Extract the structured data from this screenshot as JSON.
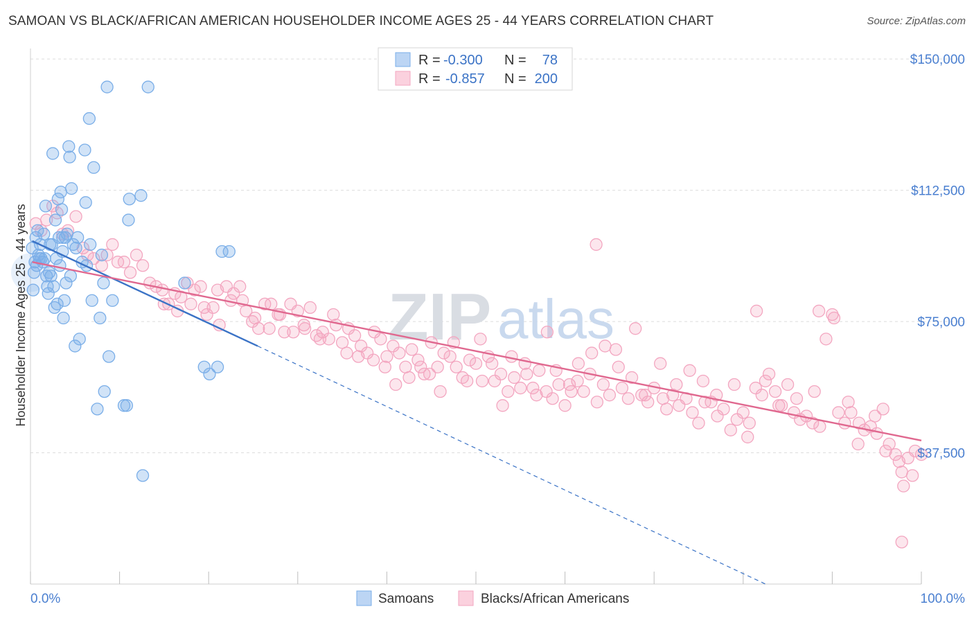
{
  "title": "SAMOAN VS BLACK/AFRICAN AMERICAN HOUSEHOLDER INCOME AGES 25 - 44 YEARS CORRELATION CHART",
  "source": "Source: ZipAtlas.com",
  "watermark": {
    "zip": "ZIP",
    "atlas": "atlas"
  },
  "colors": {
    "samoan": "#7aaee8",
    "samoan_line": "#3b73c6",
    "black": "#f3a6c0",
    "black_line": "#e0688f",
    "axis_text": "#4a7fd0",
    "grid": "#dcdcdc"
  },
  "legend": {
    "row1": {
      "r_label": "R =",
      "r_value": "-0.300",
      "n_label": "N =",
      "n_value": "78"
    },
    "row2": {
      "r_label": "R =",
      "r_value": "-0.857",
      "n_label": "N =",
      "n_value": "200"
    }
  },
  "bottom_legend": {
    "samoan": "Samoans",
    "black": "Blacks/African Americans"
  },
  "chart_data": {
    "type": "scatter",
    "title": "SAMOAN VS BLACK/AFRICAN AMERICAN HOUSEHOLDER INCOME AGES 25 - 44 YEARS CORRELATION CHART",
    "ylabel": "Householder Income Ages 25 - 44 years",
    "xlabel": "",
    "x_tick_labels": [
      "0.0%",
      "100.0%"
    ],
    "y_tick_labels": [
      "$37,500",
      "$75,000",
      "$112,500",
      "$150,000"
    ],
    "y_ticks": [
      37500,
      75000,
      112500,
      150000
    ],
    "xlim": [
      0,
      100
    ],
    "ylim": [
      0,
      153000
    ],
    "grid": true,
    "legend_position": "top-center",
    "series": [
      {
        "name": "Samoans",
        "r": -0.3,
        "n": 78,
        "trend": {
          "x0": 0.2,
          "y0": 98000,
          "x1": 25.5,
          "y1": 68000,
          "dash_x1": 82.5,
          "dash_y1": 0
        },
        "points": [
          [
            0.2,
            96
          ],
          [
            0.5,
            92
          ],
          [
            0.6,
            99
          ],
          [
            0.8,
            101
          ],
          [
            1.0,
            93
          ],
          [
            1.1,
            97
          ],
          [
            1.4,
            92
          ],
          [
            1.6,
            93
          ],
          [
            1.8,
            88
          ],
          [
            1.9,
            85
          ],
          [
            2.1,
            89
          ],
          [
            2.3,
            88
          ],
          [
            2.4,
            97
          ],
          [
            2.5,
            123
          ],
          [
            2.6,
            85
          ],
          [
            2.7,
            79
          ],
          [
            2.8,
            104
          ],
          [
            3.0,
            80
          ],
          [
            3.1,
            110
          ],
          [
            3.2,
            99
          ],
          [
            3.4,
            112
          ],
          [
            3.5,
            107
          ],
          [
            3.6,
            99
          ],
          [
            3.7,
            76
          ],
          [
            3.8,
            81
          ],
          [
            3.9,
            99
          ],
          [
            4.0,
            86
          ],
          [
            4.3,
            125
          ],
          [
            4.4,
            122
          ],
          [
            4.5,
            88
          ],
          [
            4.6,
            113
          ],
          [
            4.8,
            97
          ],
          [
            5.0,
            68
          ],
          [
            5.1,
            96
          ],
          [
            5.3,
            99
          ],
          [
            5.5,
            70
          ],
          [
            6.1,
            124
          ],
          [
            6.2,
            109
          ],
          [
            6.3,
            91
          ],
          [
            6.6,
            133
          ],
          [
            6.9,
            81
          ],
          [
            7.1,
            119
          ],
          [
            7.5,
            50
          ],
          [
            7.8,
            76
          ],
          [
            8.0,
            94
          ],
          [
            8.2,
            86
          ],
          [
            8.3,
            55
          ],
          [
            8.6,
            142
          ],
          [
            8.8,
            65
          ],
          [
            9.2,
            81
          ],
          [
            10.5,
            51
          ],
          [
            10.8,
            51
          ],
          [
            11.0,
            104
          ],
          [
            11.1,
            110
          ],
          [
            12.4,
            111
          ],
          [
            12.6,
            31
          ],
          [
            13.2,
            142
          ],
          [
            17.3,
            86
          ],
          [
            19.5,
            62
          ],
          [
            20.1,
            60
          ],
          [
            21.0,
            62
          ],
          [
            21.5,
            95
          ],
          [
            22.3,
            95
          ],
          [
            0.3,
            84
          ],
          [
            0.9,
            94
          ],
          [
            1.5,
            100
          ],
          [
            2.0,
            83
          ],
          [
            5.8,
            92
          ],
          [
            6.7,
            97
          ],
          [
            3.3,
            91
          ],
          [
            1.2,
            93
          ],
          [
            0.7,
            91
          ],
          [
            2.9,
            93
          ],
          [
            4.1,
            100
          ],
          [
            1.7,
            108
          ],
          [
            0.4,
            89
          ],
          [
            2.2,
            97
          ],
          [
            3.6,
            95
          ]
        ]
      },
      {
        "name": "Blacks/African Americans",
        "r": -0.857,
        "n": 200,
        "trend": {
          "x0": 0.2,
          "y0": 92000,
          "x1": 100,
          "y1": 41000
        },
        "points": [
          [
            0.6,
            103
          ],
          [
            1.2,
            101
          ],
          [
            1.8,
            104
          ],
          [
            2.5,
            108
          ],
          [
            3.0,
            106
          ],
          [
            3.6,
            100
          ],
          [
            4.2,
            101
          ],
          [
            5.1,
            105
          ],
          [
            5.9,
            96
          ],
          [
            6.4,
            94
          ],
          [
            7.1,
            93
          ],
          [
            8.0,
            91
          ],
          [
            8.6,
            94
          ],
          [
            9.2,
            97
          ],
          [
            9.8,
            92
          ],
          [
            10.5,
            92
          ],
          [
            11.2,
            89
          ],
          [
            11.9,
            94
          ],
          [
            12.6,
            91
          ],
          [
            13.4,
            86
          ],
          [
            14.1,
            85
          ],
          [
            14.8,
            84
          ],
          [
            15.5,
            80
          ],
          [
            16.2,
            83
          ],
          [
            16.9,
            82
          ],
          [
            17.6,
            86
          ],
          [
            18.4,
            84
          ],
          [
            19.1,
            85
          ],
          [
            19.8,
            77
          ],
          [
            20.5,
            79
          ],
          [
            21.2,
            74
          ],
          [
            22.0,
            85
          ],
          [
            22.8,
            83
          ],
          [
            23.5,
            85
          ],
          [
            24.2,
            78
          ],
          [
            24.9,
            75
          ],
          [
            25.6,
            73
          ],
          [
            26.3,
            80
          ],
          [
            27.0,
            80
          ],
          [
            27.8,
            77
          ],
          [
            28.5,
            72
          ],
          [
            29.2,
            80
          ],
          [
            30.0,
            78
          ],
          [
            30.7,
            74
          ],
          [
            31.4,
            79
          ],
          [
            32.1,
            71
          ],
          [
            32.8,
            72
          ],
          [
            33.5,
            70
          ],
          [
            34.3,
            74
          ],
          [
            35.0,
            69
          ],
          [
            35.7,
            73
          ],
          [
            36.4,
            71
          ],
          [
            37.1,
            68
          ],
          [
            37.8,
            66
          ],
          [
            38.6,
            72
          ],
          [
            39.3,
            70
          ],
          [
            40.0,
            65
          ],
          [
            40.7,
            68
          ],
          [
            41.4,
            66
          ],
          [
            42.1,
            62
          ],
          [
            42.8,
            67
          ],
          [
            43.5,
            64
          ],
          [
            44.2,
            60
          ],
          [
            45.0,
            69
          ],
          [
            45.7,
            62
          ],
          [
            46.4,
            66
          ],
          [
            47.1,
            65
          ],
          [
            47.8,
            62
          ],
          [
            48.5,
            59
          ],
          [
            49.3,
            64
          ],
          [
            50.0,
            63
          ],
          [
            50.7,
            58
          ],
          [
            51.4,
            65
          ],
          [
            52.1,
            58
          ],
          [
            52.8,
            60
          ],
          [
            53.6,
            55
          ],
          [
            54.3,
            59
          ],
          [
            55.0,
            56
          ],
          [
            55.7,
            60
          ],
          [
            56.4,
            56
          ],
          [
            57.1,
            61
          ],
          [
            57.9,
            55
          ],
          [
            58.6,
            53
          ],
          [
            59.3,
            57
          ],
          [
            60.0,
            51
          ],
          [
            60.7,
            55
          ],
          [
            61.4,
            58
          ],
          [
            62.1,
            55
          ],
          [
            62.8,
            60
          ],
          [
            63.6,
            52
          ],
          [
            64.3,
            57
          ],
          [
            65.0,
            54
          ],
          [
            65.7,
            67
          ],
          [
            66.4,
            56
          ],
          [
            67.1,
            53
          ],
          [
            67.9,
            73
          ],
          [
            68.6,
            54
          ],
          [
            69.3,
            52
          ],
          [
            70.0,
            56
          ],
          [
            70.7,
            63
          ],
          [
            71.4,
            50
          ],
          [
            72.1,
            54
          ],
          [
            72.8,
            51
          ],
          [
            73.6,
            53
          ],
          [
            74.3,
            49
          ],
          [
            75.0,
            46
          ],
          [
            75.7,
            52
          ],
          [
            76.4,
            52
          ],
          [
            77.1,
            48
          ],
          [
            77.8,
            50
          ],
          [
            78.6,
            44
          ],
          [
            79.3,
            47
          ],
          [
            80.0,
            49
          ],
          [
            80.7,
            46
          ],
          [
            81.4,
            56
          ],
          [
            82.1,
            54
          ],
          [
            82.9,
            60
          ],
          [
            83.6,
            55
          ],
          [
            84.3,
            51
          ],
          [
            85.0,
            57
          ],
          [
            85.7,
            49
          ],
          [
            86.4,
            47
          ],
          [
            87.1,
            48
          ],
          [
            87.8,
            46
          ],
          [
            88.6,
            45
          ],
          [
            89.3,
            70
          ],
          [
            90.0,
            77
          ],
          [
            90.7,
            49
          ],
          [
            91.4,
            46
          ],
          [
            92.1,
            49
          ],
          [
            92.9,
            40
          ],
          [
            93.6,
            44
          ],
          [
            94.3,
            45
          ],
          [
            95.0,
            43
          ],
          [
            95.7,
            50
          ],
          [
            96.4,
            40
          ],
          [
            97.1,
            37
          ],
          [
            97.8,
            32
          ],
          [
            98.5,
            36
          ],
          [
            99.3,
            38
          ],
          [
            100.0,
            37
          ],
          [
            99.0,
            31
          ],
          [
            98.0,
            28
          ],
          [
            97.5,
            35
          ],
          [
            96.0,
            38
          ],
          [
            94.8,
            48
          ],
          [
            93.0,
            46
          ],
          [
            91.8,
            52
          ],
          [
            90.2,
            76
          ],
          [
            88.0,
            55
          ],
          [
            86.0,
            53
          ],
          [
            84.0,
            51
          ],
          [
            82.5,
            58
          ],
          [
            80.5,
            42
          ],
          [
            79.0,
            57
          ],
          [
            77.0,
            54
          ],
          [
            75.5,
            58
          ],
          [
            74.0,
            61
          ],
          [
            72.5,
            57
          ],
          [
            71.0,
            53
          ],
          [
            69.0,
            54
          ],
          [
            67.5,
            59
          ],
          [
            66.0,
            62
          ],
          [
            64.5,
            68
          ],
          [
            63.0,
            66
          ],
          [
            61.5,
            63
          ],
          [
            60.5,
            57
          ],
          [
            59.0,
            61
          ],
          [
            58.0,
            72
          ],
          [
            56.8,
            54
          ],
          [
            55.5,
            63
          ],
          [
            54.0,
            65
          ],
          [
            53.0,
            51
          ],
          [
            51.8,
            63
          ],
          [
            50.5,
            70
          ],
          [
            49.0,
            58
          ],
          [
            47.5,
            69
          ],
          [
            46.0,
            55
          ],
          [
            44.8,
            60
          ],
          [
            43.8,
            62
          ],
          [
            42.5,
            59
          ],
          [
            41.0,
            57
          ],
          [
            39.8,
            62
          ],
          [
            38.5,
            64
          ],
          [
            36.8,
            65
          ],
          [
            35.5,
            66
          ],
          [
            34.0,
            77
          ],
          [
            32.5,
            70
          ],
          [
            30.8,
            73
          ],
          [
            29.5,
            72
          ],
          [
            28.0,
            77
          ],
          [
            26.8,
            73
          ],
          [
            25.2,
            76
          ],
          [
            23.8,
            81
          ],
          [
            22.5,
            81
          ],
          [
            21.0,
            84
          ],
          [
            19.5,
            79
          ],
          [
            18.0,
            80
          ],
          [
            16.5,
            78
          ],
          [
            15.0,
            80
          ],
          [
            63.5,
            97
          ],
          [
            81.5,
            78
          ],
          [
            88.5,
            78
          ],
          [
            97.8,
            12
          ]
        ]
      }
    ]
  }
}
